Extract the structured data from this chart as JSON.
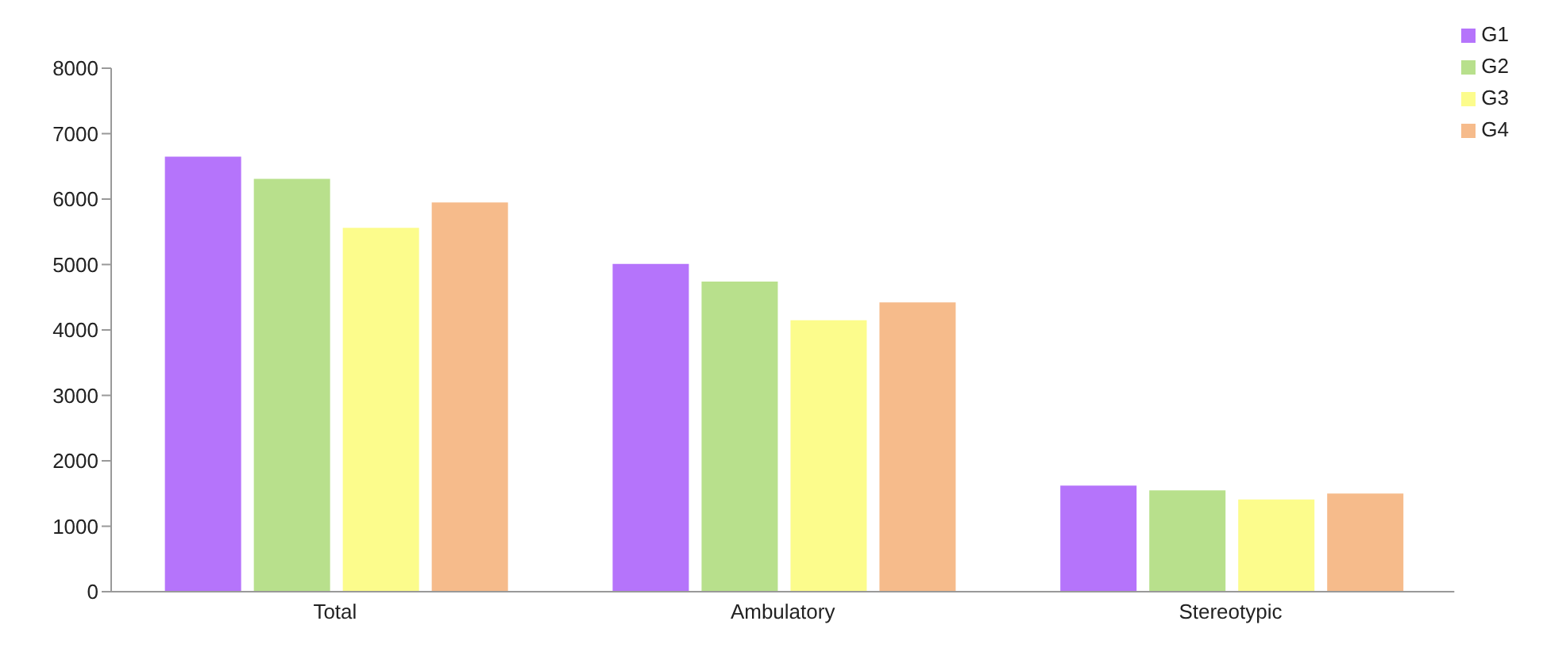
{
  "chart_data": {
    "type": "bar",
    "categories": [
      "Total",
      "Ambulatory",
      "Stereotypic"
    ],
    "series": [
      {
        "name": "G1",
        "color": "#b574fb",
        "values": [
          6650,
          5010,
          1620
        ]
      },
      {
        "name": "G2",
        "color": "#b8e08c",
        "values": [
          6310,
          4740,
          1550
        ]
      },
      {
        "name": "G3",
        "color": "#fcfc8c",
        "values": [
          5560,
          4150,
          1410
        ]
      },
      {
        "name": "G4",
        "color": "#f6bb8b",
        "values": [
          5950,
          4420,
          1500
        ]
      }
    ],
    "ylim": [
      0,
      8000
    ],
    "yticks": [
      0,
      1000,
      2000,
      3000,
      4000,
      5000,
      6000,
      7000,
      8000
    ],
    "grid": false,
    "legend": "top right"
  }
}
